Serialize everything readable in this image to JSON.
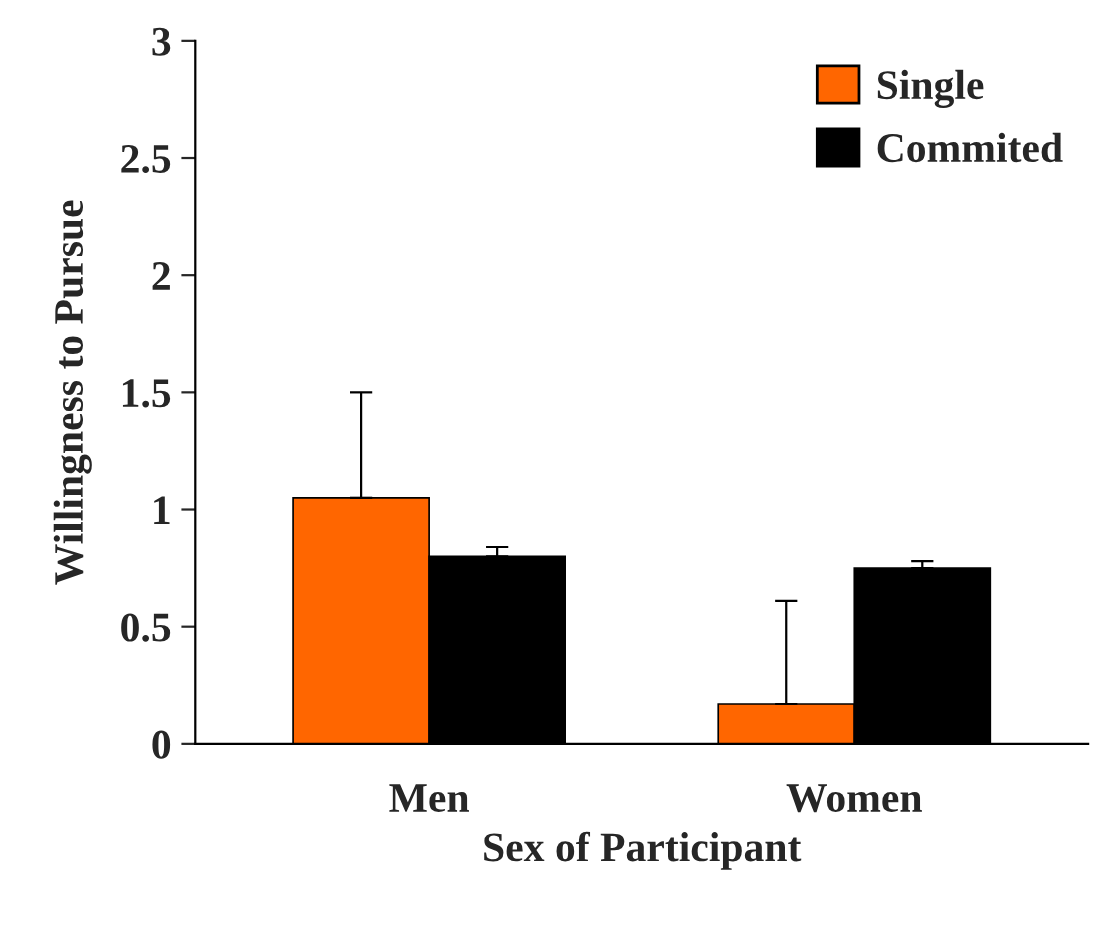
{
  "chart_data": {
    "type": "bar",
    "xlabel": "Sex of Participant",
    "ylabel": "Willingness to Pursue",
    "categories": [
      "Men",
      "Women"
    ],
    "series": [
      {
        "name": "Single",
        "color": "#ff6600",
        "values": [
          1.05,
          0.17
        ],
        "errors": [
          [
            1.05,
            1.5
          ],
          [
            0.17,
            0.61
          ]
        ]
      },
      {
        "name": "Commited",
        "color": "#000000",
        "values": [
          0.8,
          0.75
        ],
        "errors": [
          [
            0.8,
            0.84
          ],
          [
            0.75,
            0.78
          ]
        ]
      }
    ],
    "ylim": [
      0,
      3
    ],
    "yticks": [
      0,
      0.5,
      1,
      1.5,
      2,
      2.5,
      3
    ],
    "grid": false,
    "legend": "top right"
  }
}
